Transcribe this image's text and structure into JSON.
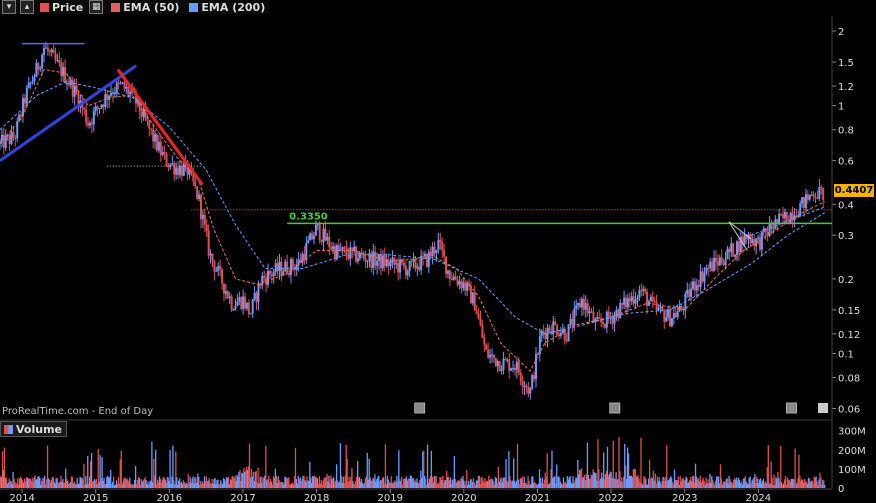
{
  "legend": {
    "items": [
      {
        "label": "Price",
        "color": "#e05050"
      },
      {
        "label": "EMA (50)",
        "color": "#e06060"
      },
      {
        "label": "EMA (200)",
        "color": "#6a9cff"
      }
    ]
  },
  "footer": "ProRealTime.com - End of Day",
  "last_price_label": "0.4407",
  "volume_legend": "Volume",
  "chart_data": [
    {
      "type": "candlestick",
      "scale": "log",
      "y_tick_labels": [
        "2",
        "1.5",
        "1.2",
        "1",
        "0.8",
        "0.6",
        "0.4",
        "0.3",
        "0.2",
        "0.15",
        "0.12",
        "0.1",
        "0.08",
        "0.06"
      ],
      "y_ticks": [
        2,
        1.5,
        1.2,
        1,
        0.8,
        0.6,
        0.4,
        0.3,
        0.2,
        0.15,
        0.12,
        0.1,
        0.08,
        0.06
      ],
      "ylim": [
        0.057,
        2.3
      ],
      "x_tick_labels": [
        "2014",
        "2015",
        "2016",
        "2017",
        "2018",
        "2019",
        "2020",
        "2021",
        "2022",
        "2023",
        "2024"
      ],
      "xlim": [
        2013.7,
        2025.0
      ],
      "price_path": [
        [
          2013.7,
          0.7
        ],
        [
          2013.9,
          0.75
        ],
        [
          2014.05,
          1.1
        ],
        [
          2014.2,
          1.4
        ],
        [
          2014.3,
          1.72
        ],
        [
          2014.45,
          1.5
        ],
        [
          2014.6,
          1.3
        ],
        [
          2014.75,
          1.1
        ],
        [
          2014.9,
          0.85
        ],
        [
          2015.05,
          1.0
        ],
        [
          2015.2,
          1.15
        ],
        [
          2015.35,
          1.2
        ],
        [
          2015.5,
          1.1
        ],
        [
          2015.65,
          0.9
        ],
        [
          2015.8,
          0.72
        ],
        [
          2015.95,
          0.6
        ],
        [
          2016.1,
          0.56
        ],
        [
          2016.25,
          0.55
        ],
        [
          2016.4,
          0.42
        ],
        [
          2016.55,
          0.25
        ],
        [
          2016.7,
          0.2
        ],
        [
          2016.85,
          0.16
        ],
        [
          2017.0,
          0.165
        ],
        [
          2017.1,
          0.145
        ],
        [
          2017.25,
          0.2
        ],
        [
          2017.5,
          0.22
        ],
        [
          2017.75,
          0.23
        ],
        [
          2018.0,
          0.32
        ],
        [
          2018.25,
          0.26
        ],
        [
          2018.5,
          0.25
        ],
        [
          2018.75,
          0.24
        ],
        [
          2019.0,
          0.23
        ],
        [
          2019.25,
          0.22
        ],
        [
          2019.5,
          0.24
        ],
        [
          2019.65,
          0.28
        ],
        [
          2019.8,
          0.21
        ],
        [
          2020.0,
          0.19
        ],
        [
          2020.15,
          0.16
        ],
        [
          2020.3,
          0.1
        ],
        [
          2020.5,
          0.092
        ],
        [
          2020.7,
          0.09
        ],
        [
          2020.9,
          0.07
        ],
        [
          2021.05,
          0.12
        ],
        [
          2021.2,
          0.13
        ],
        [
          2021.4,
          0.12
        ],
        [
          2021.6,
          0.165
        ],
        [
          2021.8,
          0.13
        ],
        [
          2022.0,
          0.14
        ],
        [
          2022.2,
          0.16
        ],
        [
          2022.4,
          0.18
        ],
        [
          2022.6,
          0.15
        ],
        [
          2022.8,
          0.14
        ],
        [
          2022.95,
          0.15
        ],
        [
          2023.1,
          0.185
        ],
        [
          2023.3,
          0.22
        ],
        [
          2023.5,
          0.24
        ],
        [
          2023.7,
          0.27
        ],
        [
          2023.85,
          0.3
        ],
        [
          2024.0,
          0.28
        ],
        [
          2024.2,
          0.33
        ],
        [
          2024.4,
          0.36
        ],
        [
          2024.6,
          0.4
        ],
        [
          2024.75,
          0.45
        ],
        [
          2024.9,
          0.44
        ]
      ],
      "ema50_path": [
        [
          2013.7,
          0.7
        ],
        [
          2014.0,
          0.9
        ],
        [
          2014.3,
          1.4
        ],
        [
          2014.6,
          1.35
        ],
        [
          2014.9,
          1.0
        ],
        [
          2015.2,
          1.08
        ],
        [
          2015.5,
          1.1
        ],
        [
          2015.8,
          0.82
        ],
        [
          2016.1,
          0.62
        ],
        [
          2016.4,
          0.5
        ],
        [
          2016.6,
          0.32
        ],
        [
          2016.9,
          0.2
        ],
        [
          2017.2,
          0.19
        ],
        [
          2017.6,
          0.21
        ],
        [
          2018.0,
          0.26
        ],
        [
          2018.5,
          0.26
        ],
        [
          2019.0,
          0.235
        ],
        [
          2019.6,
          0.245
        ],
        [
          2019.9,
          0.22
        ],
        [
          2020.2,
          0.17
        ],
        [
          2020.5,
          0.11
        ],
        [
          2020.9,
          0.085
        ],
        [
          2021.1,
          0.11
        ],
        [
          2021.5,
          0.13
        ],
        [
          2022.0,
          0.14
        ],
        [
          2022.5,
          0.16
        ],
        [
          2023.0,
          0.15
        ],
        [
          2023.4,
          0.2
        ],
        [
          2023.8,
          0.26
        ],
        [
          2024.2,
          0.31
        ],
        [
          2024.6,
          0.37
        ],
        [
          2024.9,
          0.41
        ]
      ],
      "ema200_path": [
        [
          2013.7,
          0.8
        ],
        [
          2014.2,
          1.1
        ],
        [
          2014.6,
          1.25
        ],
        [
          2015.0,
          1.18
        ],
        [
          2015.5,
          1.08
        ],
        [
          2016.0,
          0.82
        ],
        [
          2016.5,
          0.55
        ],
        [
          2016.9,
          0.33
        ],
        [
          2017.3,
          0.22
        ],
        [
          2017.8,
          0.22
        ],
        [
          2018.4,
          0.25
        ],
        [
          2019.0,
          0.25
        ],
        [
          2019.6,
          0.24
        ],
        [
          2020.2,
          0.2
        ],
        [
          2020.7,
          0.14
        ],
        [
          2021.1,
          0.12
        ],
        [
          2021.6,
          0.13
        ],
        [
          2022.2,
          0.145
        ],
        [
          2022.8,
          0.15
        ],
        [
          2023.3,
          0.18
        ],
        [
          2023.9,
          0.23
        ],
        [
          2024.4,
          0.3
        ],
        [
          2024.9,
          0.37
        ]
      ],
      "annotations": {
        "horizontal_level": {
          "label": "0.3350",
          "value": 0.335,
          "x_start": 2017.6,
          "color": "#44cc33"
        },
        "dotted_level": {
          "value": 0.38,
          "x_start": 2016.3,
          "color": "#c87a3a"
        },
        "blue_trendline": {
          "from": [
            2013.7,
            0.6
          ],
          "to": [
            2015.55,
            1.45
          ],
          "color": "#3344dd"
        },
        "red_trendline": {
          "from": [
            2015.3,
            1.4
          ],
          "to": [
            2016.45,
            0.48
          ],
          "color": "#ee2222"
        },
        "top_bar": {
          "from": [
            2014.0,
            1.78
          ],
          "to": [
            2014.85,
            1.78
          ],
          "color": "#6060ff"
        }
      },
      "last_value": 0.4407
    },
    {
      "type": "bar",
      "title": "Volume",
      "y_tick_labels": [
        "300M",
        "200M",
        "100M",
        "0"
      ],
      "y_ticks": [
        300,
        200,
        100,
        0
      ],
      "ylim": [
        0,
        330
      ]
    }
  ]
}
